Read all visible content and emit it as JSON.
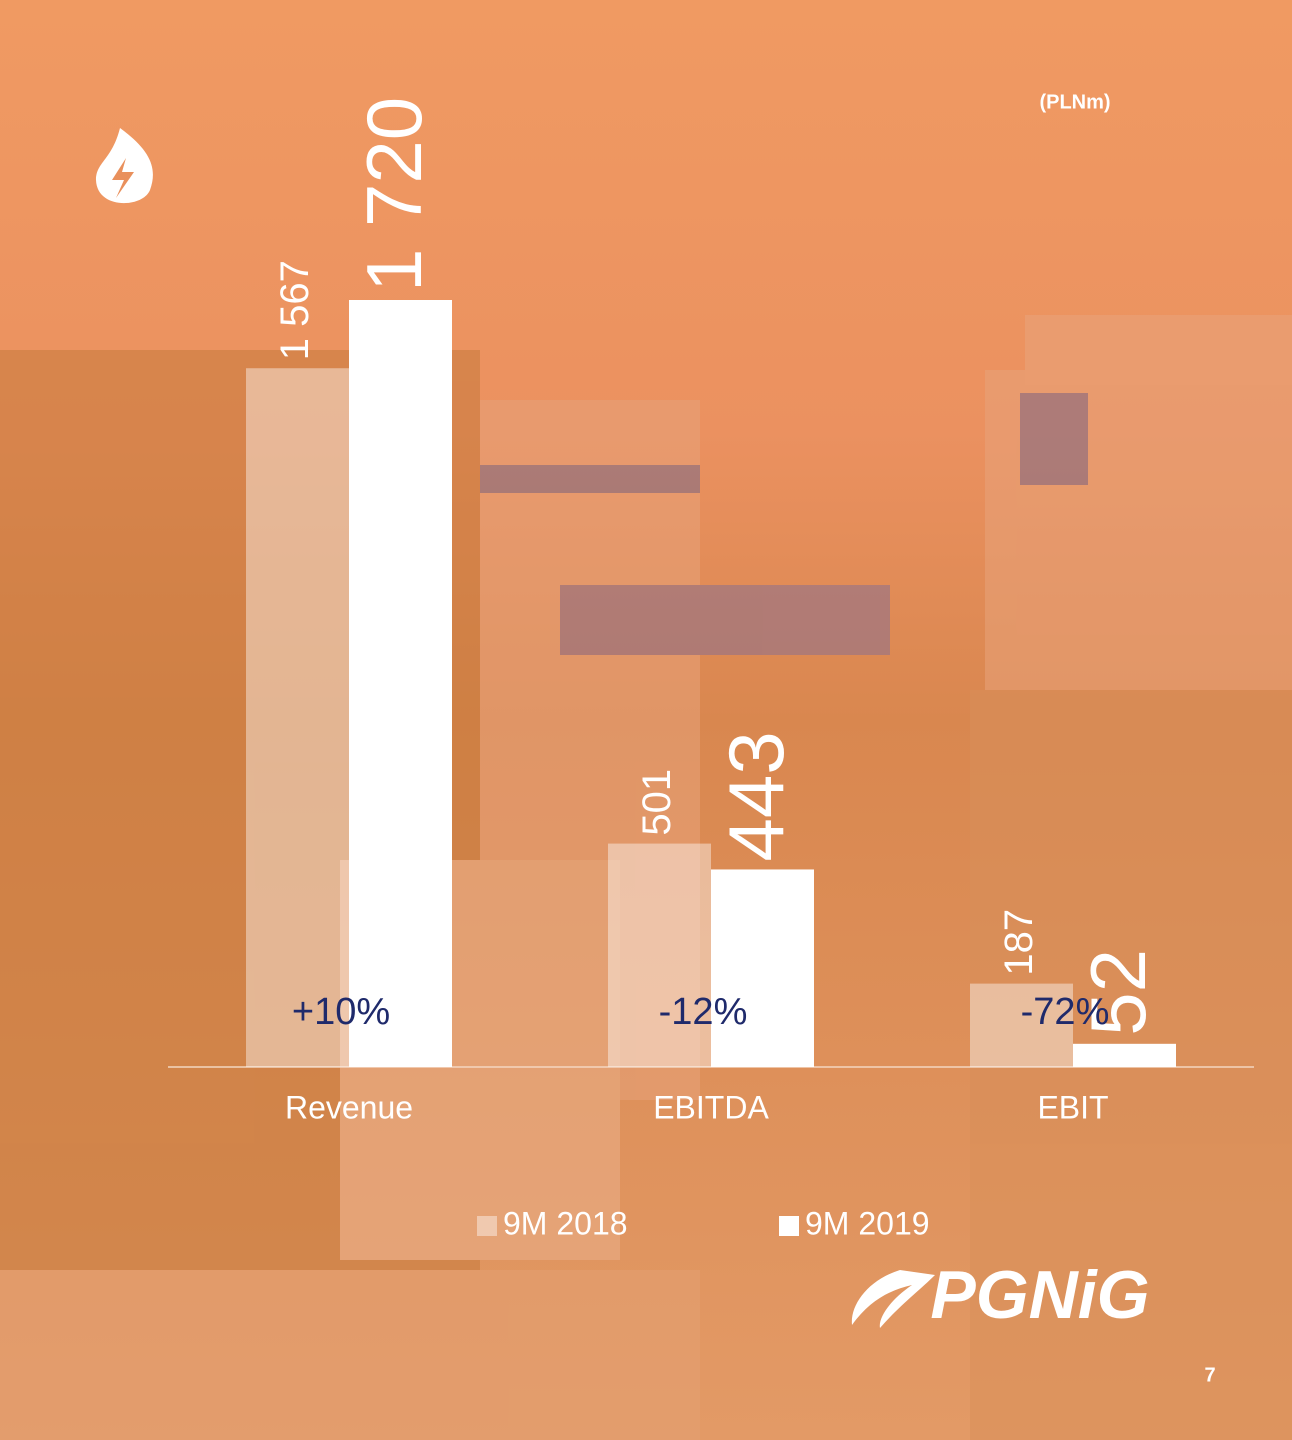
{
  "chart_data": {
    "type": "bar",
    "unit": "(PLNm)",
    "categories": [
      "Revenue",
      "EBITDA",
      "EBIT"
    ],
    "series": [
      {
        "name": "9M 2018",
        "color": "rgba(255,255,255,0.42)",
        "values": [
          1567,
          501,
          187
        ],
        "value_labels": [
          "1 567",
          "501",
          "187"
        ]
      },
      {
        "name": "9M 2019",
        "color": "#ffffff",
        "values": [
          1720,
          443,
          52
        ],
        "value_labels": [
          "1 720",
          "443",
          "52"
        ]
      }
    ],
    "annotations": [
      "+10%",
      "-12%",
      "-72%"
    ]
  },
  "footer": {
    "logo": "PGNiG",
    "page_number": "7"
  }
}
